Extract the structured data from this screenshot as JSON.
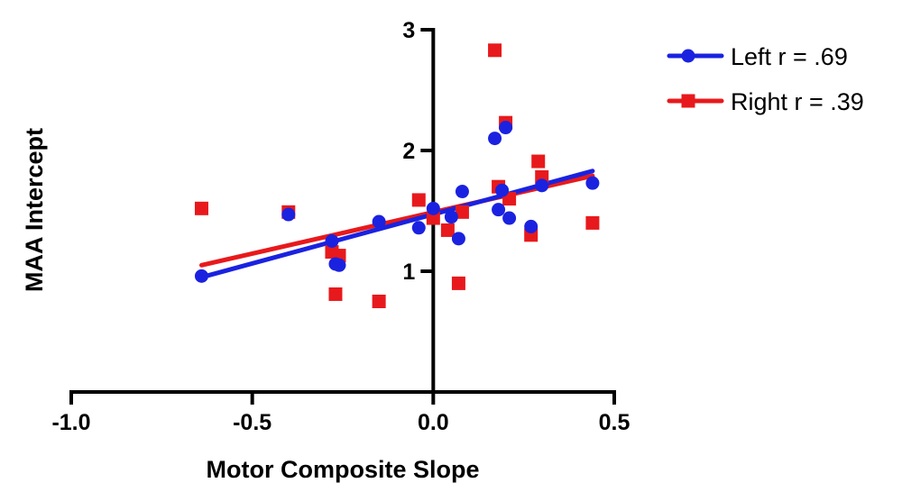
{
  "chart_data": {
    "type": "scatter",
    "title": "",
    "xlabel": "Motor Composite Slope",
    "ylabel": "MAA Intercept",
    "xlim": [
      -1.0,
      0.5
    ],
    "ylim": [
      0,
      3
    ],
    "x_ticks": [
      -1.0,
      -0.5,
      0.0,
      0.5
    ],
    "x_tick_labels": [
      "-1.0",
      "-0.5",
      "0.0",
      "0.5"
    ],
    "y_ticks": [
      1,
      2,
      3
    ],
    "y_tick_labels": [
      "1",
      "2",
      "3"
    ],
    "grid": false,
    "legend_position": "top-right",
    "series": [
      {
        "name": "Left r = .69",
        "color": "#1a22e0",
        "marker": "circle",
        "points": [
          [
            -0.64,
            0.96
          ],
          [
            -0.4,
            1.47
          ],
          [
            -0.28,
            1.25
          ],
          [
            -0.27,
            1.06
          ],
          [
            -0.26,
            1.05
          ],
          [
            -0.15,
            1.41
          ],
          [
            -0.04,
            1.36
          ],
          [
            0.0,
            1.52
          ],
          [
            0.05,
            1.45
          ],
          [
            0.07,
            1.27
          ],
          [
            0.08,
            1.66
          ],
          [
            0.17,
            2.1
          ],
          [
            0.18,
            1.51
          ],
          [
            0.19,
            1.67
          ],
          [
            0.2,
            2.19
          ],
          [
            0.21,
            1.44
          ],
          [
            0.27,
            1.37
          ],
          [
            0.3,
            1.71
          ],
          [
            0.44,
            1.73
          ]
        ],
        "fit": [
          [
            -0.64,
            0.95
          ],
          [
            0.44,
            1.83
          ]
        ]
      },
      {
        "name": "Right r = .39",
        "color": "#e8191c",
        "marker": "square",
        "points": [
          [
            -0.64,
            1.52
          ],
          [
            -0.4,
            1.49
          ],
          [
            -0.28,
            1.16
          ],
          [
            -0.26,
            1.13
          ],
          [
            -0.27,
            0.81
          ],
          [
            -0.15,
            0.75
          ],
          [
            -0.04,
            1.59
          ],
          [
            0.0,
            1.44
          ],
          [
            0.04,
            1.34
          ],
          [
            0.07,
            0.9
          ],
          [
            0.08,
            1.49
          ],
          [
            0.17,
            2.83
          ],
          [
            0.18,
            1.7
          ],
          [
            0.2,
            2.23
          ],
          [
            0.21,
            1.6
          ],
          [
            0.27,
            1.3
          ],
          [
            0.29,
            1.91
          ],
          [
            0.3,
            1.78
          ],
          [
            0.44,
            1.4
          ]
        ],
        "fit": [
          [
            -0.64,
            1.05
          ],
          [
            0.44,
            1.79
          ]
        ]
      }
    ]
  }
}
